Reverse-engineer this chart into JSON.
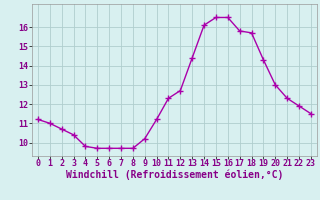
{
  "hours": [
    0,
    1,
    2,
    3,
    4,
    5,
    6,
    7,
    8,
    9,
    10,
    11,
    12,
    13,
    14,
    15,
    16,
    17,
    18,
    19,
    20,
    21,
    22,
    23
  ],
  "values": [
    11.2,
    11.0,
    10.7,
    10.4,
    9.8,
    9.7,
    9.7,
    9.7,
    9.7,
    10.2,
    11.2,
    12.3,
    12.7,
    14.4,
    16.1,
    16.5,
    16.5,
    15.8,
    15.7,
    14.3,
    13.0,
    12.3,
    11.9,
    11.5
  ],
  "line_color": "#aa00aa",
  "marker": "+",
  "markersize": 4,
  "linewidth": 1.0,
  "bg_color": "#d8f0f0",
  "grid_color": "#b0cece",
  "xlabel": "Windchill (Refroidissement éolien,°C)",
  "xlabel_fontsize": 7,
  "tick_fontsize": 6,
  "ylim": [
    9.3,
    17.2
  ],
  "yticks": [
    10,
    11,
    12,
    13,
    14,
    15,
    16
  ],
  "xlim": [
    -0.5,
    23.5
  ],
  "xticks": [
    0,
    1,
    2,
    3,
    4,
    5,
    6,
    7,
    8,
    9,
    10,
    11,
    12,
    13,
    14,
    15,
    16,
    17,
    18,
    19,
    20,
    21,
    22,
    23
  ],
  "label_color": "#880088",
  "spine_color": "#999999"
}
